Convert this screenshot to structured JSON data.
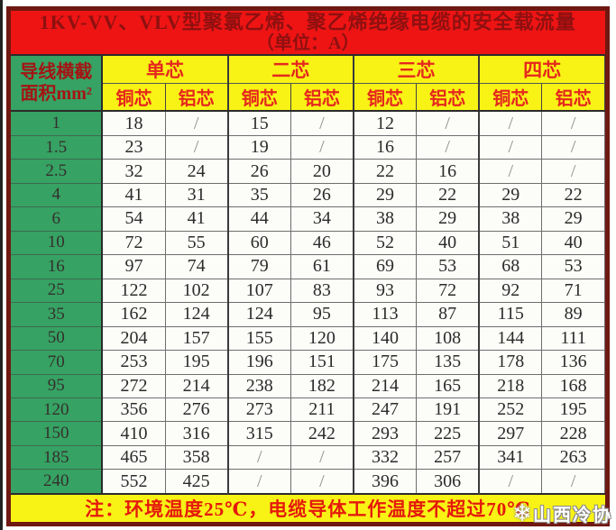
{
  "title": {
    "line1": "1KV-VV、VLV型聚氯乙烯、聚乙烯绝缘电缆的安全载流量",
    "line2": "（单位：A）"
  },
  "header": {
    "corner_line1": "导线横截",
    "corner_line2": "面积mm²"
  },
  "chart_data": {
    "type": "table",
    "title": "1KV-VV、VLV型聚氯乙烯、聚乙烯绝缘电缆的安全载流量",
    "unit_label": "（单位：A）",
    "row_header": "导线横截面积mm²",
    "column_groups": [
      "单芯",
      "二芯",
      "三芯",
      "四芯"
    ],
    "sub_columns": [
      "铜芯",
      "铝芯"
    ],
    "rows": [
      {
        "size": "1",
        "values": [
          "18",
          "/",
          "15",
          "/",
          "12",
          "/",
          "/",
          "/"
        ]
      },
      {
        "size": "1.5",
        "values": [
          "23",
          "/",
          "19",
          "/",
          "16",
          "/",
          "/",
          "/"
        ]
      },
      {
        "size": "2.5",
        "values": [
          "32",
          "24",
          "26",
          "20",
          "22",
          "16",
          "/",
          "/"
        ]
      },
      {
        "size": "4",
        "values": [
          "41",
          "31",
          "35",
          "26",
          "29",
          "22",
          "29",
          "22"
        ]
      },
      {
        "size": "6",
        "values": [
          "54",
          "41",
          "44",
          "34",
          "38",
          "29",
          "38",
          "29"
        ]
      },
      {
        "size": "10",
        "values": [
          "72",
          "55",
          "60",
          "46",
          "52",
          "40",
          "51",
          "40"
        ]
      },
      {
        "size": "16",
        "values": [
          "97",
          "74",
          "79",
          "61",
          "69",
          "53",
          "68",
          "53"
        ]
      },
      {
        "size": "25",
        "values": [
          "122",
          "102",
          "107",
          "83",
          "93",
          "72",
          "92",
          "71"
        ]
      },
      {
        "size": "35",
        "values": [
          "162",
          "124",
          "124",
          "95",
          "113",
          "87",
          "115",
          "89"
        ]
      },
      {
        "size": "50",
        "values": [
          "204",
          "157",
          "155",
          "120",
          "140",
          "108",
          "144",
          "111"
        ]
      },
      {
        "size": "70",
        "values": [
          "253",
          "195",
          "196",
          "151",
          "175",
          "135",
          "178",
          "136"
        ]
      },
      {
        "size": "95",
        "values": [
          "272",
          "214",
          "238",
          "182",
          "214",
          "165",
          "218",
          "168"
        ]
      },
      {
        "size": "120",
        "values": [
          "356",
          "276",
          "273",
          "211",
          "247",
          "191",
          "252",
          "195"
        ]
      },
      {
        "size": "150",
        "values": [
          "410",
          "316",
          "315",
          "242",
          "293",
          "225",
          "297",
          "228"
        ]
      },
      {
        "size": "185",
        "values": [
          "465",
          "358",
          "/",
          "/",
          "332",
          "257",
          "341",
          "263"
        ]
      },
      {
        "size": "240",
        "values": [
          "552",
          "425",
          "/",
          "/",
          "396",
          "306",
          "/",
          "/"
        ]
      }
    ],
    "note": "注：环境温度25℃，电缆导体工作温度不超过70℃"
  },
  "watermark": {
    "icon": "snowflake-icon",
    "icon_glyph": "❄",
    "text": "山西冷协"
  },
  "colors": {
    "title_bg": "#ee1414",
    "title_text": "#8e1010",
    "header_bg": "#f8f315",
    "header_text": "#e5271e",
    "green_bg": "#36a263",
    "note_text": "#e5190c",
    "outer_border": "#701812"
  }
}
